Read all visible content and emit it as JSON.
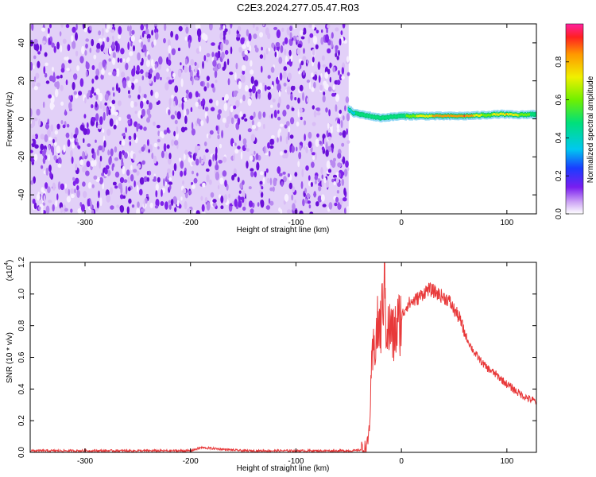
{
  "title": "C2E3.2024.277.05.47.R03",
  "chart_data": [
    {
      "type": "heatmap",
      "xlabel": "Height of straight line (km)",
      "ylabel": "Frequency (Hz)",
      "xlim": [
        -352,
        128
      ],
      "ylim": [
        -50,
        50
      ],
      "x_ticks": [
        -300,
        -200,
        -100,
        0,
        100
      ],
      "y_ticks": [
        -40,
        -20,
        0,
        20,
        40
      ],
      "noise_region_x": [
        -352,
        -50
      ],
      "signal_line": {
        "x_start": -50,
        "x_end": 128,
        "freq": [
          [
            -50,
            5
          ],
          [
            -45,
            3
          ],
          [
            -40,
            2.5
          ],
          [
            -30,
            1.5
          ],
          [
            -20,
            0.5
          ],
          [
            -10,
            1
          ],
          [
            0,
            1.5
          ],
          [
            20,
            1.5
          ],
          [
            60,
            1.5
          ],
          [
            80,
            2
          ],
          [
            95,
            2.5
          ],
          [
            110,
            2
          ],
          [
            128,
            2.5
          ]
        ],
        "amplitude": [
          [
            -50,
            0.45
          ],
          [
            -40,
            0.6
          ],
          [
            -20,
            0.55
          ],
          [
            0,
            0.6
          ],
          [
            20,
            0.8
          ],
          [
            40,
            0.9
          ],
          [
            60,
            0.95
          ],
          [
            80,
            0.7
          ],
          [
            100,
            0.85
          ],
          [
            128,
            0.6
          ]
        ]
      },
      "colorbar": {
        "label": "Normalized spectral amplitude",
        "range": [
          0,
          1
        ],
        "ticks": [
          0.0,
          0.2,
          0.4,
          0.6,
          0.8
        ]
      }
    },
    {
      "type": "line",
      "xlabel": "Height of straight line (km)",
      "ylabel": "SNR (10 * v/v)",
      "scale_label": "(x10",
      "scale_exp": "4",
      "scale_close": ")",
      "xlim": [
        -352,
        128
      ],
      "ylim": [
        0,
        1.2
      ],
      "x_ticks": [
        -300,
        -200,
        -100,
        0,
        100
      ],
      "y_ticks": [
        0.0,
        0.2,
        0.4,
        0.6,
        0.8,
        1.0,
        1.2
      ],
      "color": "#e8393a",
      "series": [
        {
          "x": [
            -352,
            -300,
            -250,
            -200,
            -190,
            -150,
            -100,
            -60,
            -45,
            -35,
            -32,
            -30,
            -28,
            -25,
            -22,
            -20,
            -18,
            -16,
            -15,
            -12,
            -10,
            -8,
            -5,
            -2,
            0,
            5,
            10,
            15,
            20,
            25,
            30,
            35,
            40,
            45,
            50,
            55,
            60,
            65,
            70,
            75,
            80,
            90,
            100,
            110,
            120,
            128
          ],
          "y": [
            0.01,
            0.01,
            0.01,
            0.01,
            0.03,
            0.01,
            0.01,
            0.01,
            0.01,
            0.02,
            0.05,
            0.2,
            0.55,
            0.7,
            0.8,
            0.78,
            0.9,
            1.2,
            0.85,
            0.75,
            0.8,
            0.72,
            0.78,
            0.82,
            0.85,
            0.93,
            0.95,
            0.97,
            1.0,
            1.03,
            1.02,
            1.0,
            0.98,
            0.96,
            0.9,
            0.85,
            0.75,
            0.68,
            0.62,
            0.58,
            0.54,
            0.49,
            0.43,
            0.38,
            0.34,
            0.32
          ]
        }
      ]
    }
  ]
}
